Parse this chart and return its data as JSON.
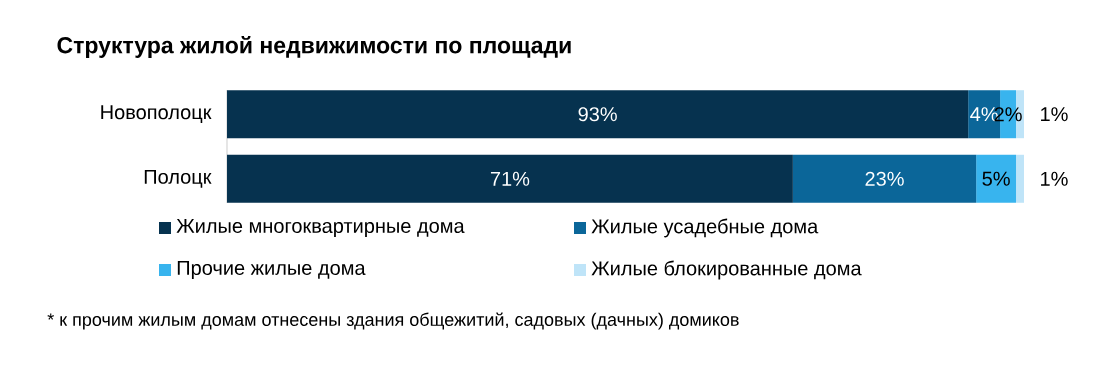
{
  "chart_data": {
    "type": "bar",
    "orientation": "horizontal",
    "stacked": true,
    "title": "Структура жилой недвижимости по площади",
    "categories": [
      "Новополоцк",
      "Полоцк"
    ],
    "xlim": [
      0,
      100
    ],
    "series": [
      {
        "name": "Жилые многоквартирные дома",
        "color": "#06324f",
        "values": [
          93,
          71
        ],
        "value_labels": [
          "93%",
          "71%"
        ]
      },
      {
        "name": "Жилые усадебные дома",
        "color": "#0b6699",
        "values": [
          4,
          23
        ],
        "value_labels": [
          "4%",
          "23%"
        ]
      },
      {
        "name": "Прочие жилые дома",
        "color": "#38b4ee",
        "values": [
          2,
          5
        ],
        "value_labels": [
          "2%",
          "5%"
        ]
      },
      {
        "name": "Жилые блокированные дома",
        "color": "#bfe4f8",
        "values": [
          1,
          1
        ],
        "value_labels": [
          "1%",
          "1%"
        ]
      }
    ],
    "legend": "bottom",
    "annotations": [
      "* к прочим жилым домам отнесены здания общежитий, садовых (дачных) домиков"
    ]
  }
}
